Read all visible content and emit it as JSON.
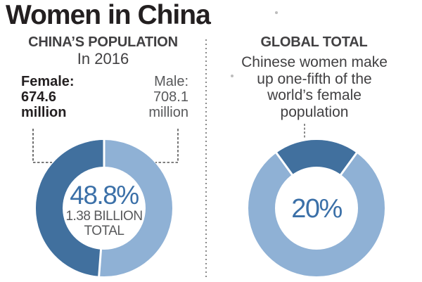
{
  "title": "Women in China",
  "left_panel": {
    "heading": "CHINA’S POPULATION",
    "subheading": "In 2016",
    "female": {
      "label": "Female:",
      "value": "674.6",
      "unit": "million"
    },
    "male": {
      "label": "Male:",
      "value": "708.1",
      "unit": "million"
    }
  },
  "right_panel": {
    "heading": "GLOBAL TOTAL",
    "description_lines": [
      "Chinese women make",
      "up one-fifth of the",
      "world’s female",
      "population"
    ]
  },
  "colors": {
    "dark_blue": "#41709e",
    "light_blue": "#8fb1d5",
    "percent_text_blue": "#3b70a8",
    "heading_gray": "#414042",
    "body_gray": "#58595b",
    "title_black": "#231f20",
    "divider_gray": "#8a8a8a"
  },
  "chart_data": [
    {
      "type": "pie",
      "subtype": "donut",
      "title": "CHINA’S POPULATION In 2016",
      "slices": [
        {
          "label": "Female",
          "value_percent": 48.8,
          "value": "674.6 million",
          "color": "#41709e"
        },
        {
          "label": "Male",
          "value_percent": 51.2,
          "value": "708.1 million",
          "color": "#8fb1d5"
        }
      ],
      "dark_start_percent": 51.2,
      "center_label": "48.8%",
      "center_sub1": "1.38 BILLION",
      "center_sub2": "TOTAL",
      "legend_position": "callout-labels-above",
      "total": "1.38 billion"
    },
    {
      "type": "pie",
      "subtype": "donut",
      "title": "GLOBAL TOTAL",
      "slices": [
        {
          "label": "Chinese women",
          "value_percent": 20,
          "color": "#41709e"
        },
        {
          "label": "Rest of world’s female population",
          "value_percent": 80,
          "color": "#8fb1d5"
        }
      ],
      "dark_start_percent": 90,
      "center_label": "20%",
      "legend_position": "description-above"
    }
  ]
}
